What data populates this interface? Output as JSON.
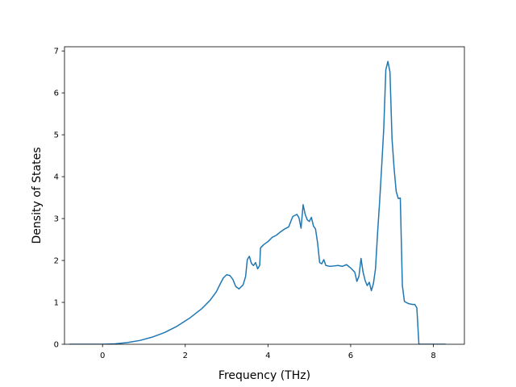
{
  "chart_data": {
    "type": "line",
    "title": "",
    "xlabel": "Frequency (THz)",
    "ylabel": "Density of States",
    "xlim": [
      -0.92,
      8.75
    ],
    "ylim": [
      0,
      7.1
    ],
    "xticks": [
      0,
      2,
      4,
      6,
      8
    ],
    "yticks": [
      0,
      1,
      2,
      3,
      4,
      5,
      6,
      7
    ],
    "xtick_labels": [
      "0",
      "2",
      "4",
      "6",
      "8"
    ],
    "ytick_labels": [
      "0",
      "1",
      "2",
      "3",
      "4",
      "5",
      "6",
      "7"
    ],
    "grid": false,
    "legend": "none",
    "series": [
      {
        "color": "#1f77b4",
        "x": [
          -0.8,
          -0.4,
          0.0,
          0.3,
          0.6,
          0.9,
          1.2,
          1.5,
          1.8,
          2.1,
          2.4,
          2.6,
          2.75,
          2.85,
          2.92,
          3.0,
          3.08,
          3.15,
          3.22,
          3.3,
          3.4,
          3.46,
          3.5,
          3.55,
          3.6,
          3.65,
          3.7,
          3.75,
          3.8,
          3.82,
          3.9,
          4.0,
          4.1,
          4.2,
          4.3,
          4.4,
          4.5,
          4.6,
          4.7,
          4.75,
          4.8,
          4.85,
          4.9,
          4.95,
          5.0,
          5.05,
          5.1,
          5.15,
          5.2,
          5.25,
          5.3,
          5.35,
          5.4,
          5.45,
          5.5,
          5.6,
          5.7,
          5.8,
          5.9,
          6.0,
          6.1,
          6.15,
          6.2,
          6.25,
          6.3,
          6.35,
          6.4,
          6.45,
          6.5,
          6.55,
          6.6,
          6.65,
          6.7,
          6.75,
          6.8,
          6.85,
          6.9,
          6.95,
          7.0,
          7.05,
          7.1,
          7.15,
          7.2,
          7.25,
          7.3,
          7.4,
          7.5,
          7.55,
          7.6,
          7.65,
          7.8,
          8.0,
          8.3
        ],
        "y": [
          0,
          0,
          0,
          0.01,
          0.04,
          0.09,
          0.17,
          0.28,
          0.43,
          0.62,
          0.85,
          1.05,
          1.25,
          1.45,
          1.58,
          1.66,
          1.64,
          1.55,
          1.38,
          1.32,
          1.42,
          1.62,
          2.02,
          2.1,
          1.93,
          1.88,
          1.95,
          1.8,
          1.88,
          2.3,
          2.38,
          2.45,
          2.55,
          2.6,
          2.68,
          2.75,
          2.8,
          3.05,
          3.1,
          3.02,
          2.77,
          3.33,
          3.1,
          2.97,
          2.93,
          3.03,
          2.82,
          2.75,
          2.42,
          1.95,
          1.92,
          2.02,
          1.88,
          1.87,
          1.86,
          1.87,
          1.88,
          1.86,
          1.9,
          1.82,
          1.72,
          1.5,
          1.62,
          2.05,
          1.72,
          1.52,
          1.4,
          1.48,
          1.28,
          1.45,
          1.8,
          2.65,
          3.4,
          4.25,
          5.15,
          6.55,
          6.75,
          6.5,
          4.9,
          4.2,
          3.65,
          3.48,
          3.49,
          1.4,
          1.02,
          0.97,
          0.95,
          0.95,
          0.87,
          0.0,
          0.0,
          0.0,
          0.0
        ]
      }
    ]
  }
}
